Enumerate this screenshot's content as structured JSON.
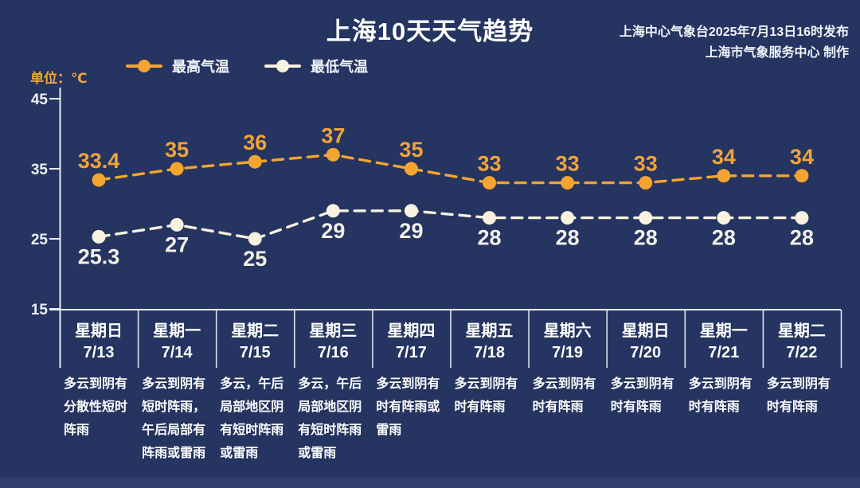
{
  "page": {
    "background_color": "#253460",
    "bottom_bar_color": "#2f3e6d"
  },
  "header": {
    "title": "上海10天天气趋势",
    "issue_line1": "上海中心气象台2025年7月13日16时发布",
    "issue_line2": "上海市气象服务中心 制作"
  },
  "unit_label": "单位：℃",
  "chart_data": {
    "type": "line",
    "title": "上海10天天气趋势",
    "unit": "℃",
    "line_style": "dashed",
    "grid": false,
    "legend_position": "top-left",
    "ylim": [
      15,
      45
    ],
    "yticks": [
      45,
      35,
      25,
      15
    ],
    "categories": [
      {
        "weekday": "星期日",
        "date": "7/13",
        "desc": "多云到阴有分散性短时阵雨"
      },
      {
        "weekday": "星期一",
        "date": "7/14",
        "desc": "多云到阴有短时阵雨，午后局部有阵雨或雷雨"
      },
      {
        "weekday": "星期二",
        "date": "7/15",
        "desc": "多云，午后局部地区阴有短时阵雨或雷雨"
      },
      {
        "weekday": "星期三",
        "date": "7/16",
        "desc": "多云，午后局部地区阴有短时阵雨或雷雨"
      },
      {
        "weekday": "星期四",
        "date": "7/17",
        "desc": "多云到阴有时有阵雨或雷雨"
      },
      {
        "weekday": "星期五",
        "date": "7/18",
        "desc": "多云到阴有时有阵雨"
      },
      {
        "weekday": "星期六",
        "date": "7/19",
        "desc": "多云到阴有时有阵雨"
      },
      {
        "weekday": "星期日",
        "date": "7/20",
        "desc": "多云到阴有时有阵雨"
      },
      {
        "weekday": "星期一",
        "date": "7/21",
        "desc": "多云到阴有时有阵雨"
      },
      {
        "weekday": "星期二",
        "date": "7/22",
        "desc": "多云到阴有时有阵雨"
      }
    ],
    "series": [
      {
        "name": "最高气温",
        "color": "#f4a52f",
        "label_color": "#f2a437",
        "values": [
          33.4,
          35,
          36,
          37,
          35,
          33,
          33,
          33,
          34,
          34
        ]
      },
      {
        "name": "最低气温",
        "color": "#f9f2e0",
        "label_color": "#f4f1ea",
        "values": [
          25.3,
          27,
          25,
          29,
          29,
          28,
          28,
          28,
          28,
          28
        ]
      }
    ]
  }
}
